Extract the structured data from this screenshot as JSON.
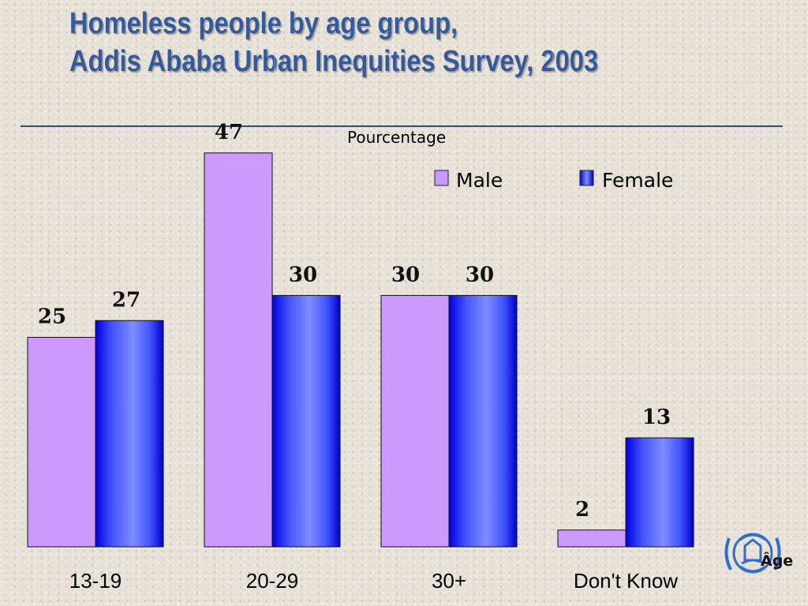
{
  "title_line1": "Homeless people by age group,",
  "title_line2": "Addis Ababa Urban Inequities Survey, 2003",
  "colors": {
    "title": "#355a9c",
    "male_fill": "#cc99ff",
    "female_fill": "#5566ff",
    "female_dark": "#0000cc",
    "rule": "#2e4f86"
  },
  "chart_data": {
    "type": "bar",
    "title": "Homeless people by age group, Addis Ababa Urban Inequities Survey, 2003",
    "ylabel": "Pourcentage",
    "xlabel": "Âge",
    "categories": [
      "13-19",
      "20-29",
      "30+",
      "Don't Know"
    ],
    "series": [
      {
        "name": "Male",
        "values": [
          25,
          47,
          30,
          2
        ]
      },
      {
        "name": "Female",
        "values": [
          27,
          30,
          30,
          13
        ]
      }
    ],
    "ylim": [
      0,
      50
    ],
    "grid": true,
    "legend": "top-right"
  }
}
